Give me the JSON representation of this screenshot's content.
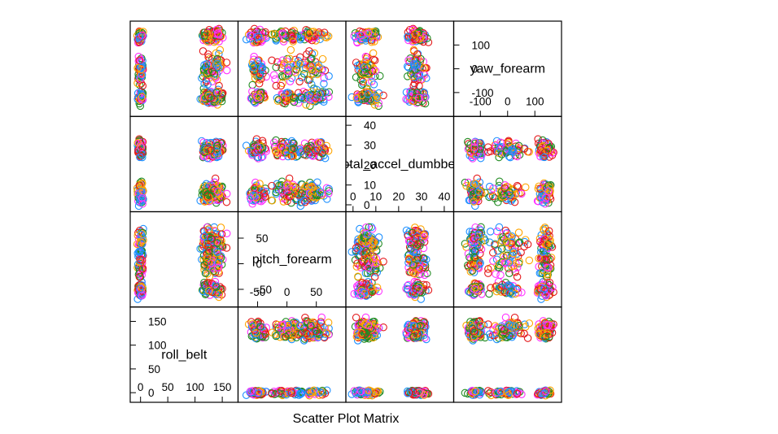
{
  "chart_data": {
    "type": "scatter",
    "title": "",
    "xlabel": "Scatter Plot Matrix",
    "colors": [
      "#e41a1c",
      "#1e90ff",
      "#228b22",
      "#ff33ff",
      "#ffa500"
    ],
    "variables": [
      {
        "name": "roll_belt",
        "range": [
          -10,
          170
        ],
        "ticks": [
          0,
          50,
          100,
          150
        ],
        "tick_labels": [
          "0",
          "50",
          "100",
          "150"
        ],
        "clusters": [
          {
            "center": 0,
            "spread": 5
          },
          {
            "center": 122,
            "spread": 8
          },
          {
            "center": 140,
            "spread": 12
          }
        ]
      },
      {
        "name": "pitch_forearm",
        "range": [
          -75,
          92
        ],
        "ticks": [
          -50,
          0,
          50
        ],
        "tick_labels": [
          "-50",
          "0",
          "50"
        ],
        "clusters": [
          {
            "center": 0,
            "spread": 28
          },
          {
            "center": 45,
            "spread": 25
          },
          {
            "center": -50,
            "spread": 12
          }
        ]
      },
      {
        "name": "total_accel_dumbbell",
        "display_name": "total_accel_dumbbell",
        "range": [
          -1,
          42
        ],
        "ticks": [
          0,
          10,
          20,
          30,
          40
        ],
        "tick_labels": [
          "0",
          "10",
          "20",
          "30",
          "40"
        ],
        "clusters": [
          {
            "center": 6,
            "spread": 5
          },
          {
            "center": 28,
            "spread": 4
          }
        ]
      },
      {
        "name": "yaw_forearm",
        "range": [
          -180,
          180
        ],
        "ticks": [
          -100,
          0,
          100
        ],
        "tick_labels": [
          "-100",
          "0",
          "100"
        ],
        "clusters": [
          {
            "center": -120,
            "spread": 25
          },
          {
            "center": 0,
            "spread": 60
          },
          {
            "center": 140,
            "spread": 25
          }
        ]
      }
    ],
    "n_points": 420
  }
}
